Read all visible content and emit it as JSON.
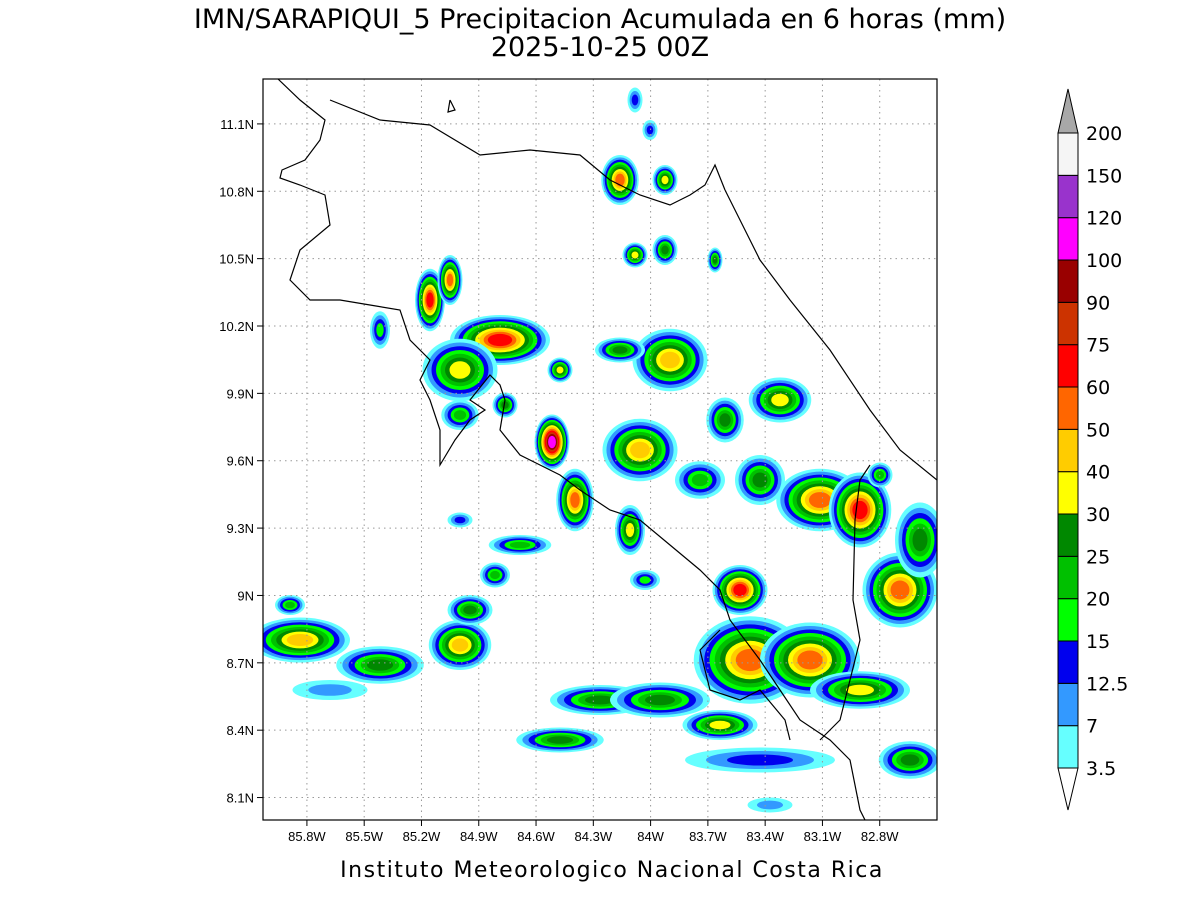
{
  "title": "IMN/SARAPIQUI_5 Precipitacion Acumulada en 6 horas (mm)",
  "subtitle": "2025-10-25 00Z",
  "footer": "Instituto Meteorologico Nacional Costa Rica",
  "map": {
    "xlim": [
      -86.03,
      -82.5
    ],
    "ylim": [
      8.0,
      11.3
    ],
    "grid": true,
    "xticks": [
      {
        "value": -85.8,
        "label": "85.8W"
      },
      {
        "value": -85.5,
        "label": "85.5W"
      },
      {
        "value": -85.2,
        "label": "85.2W"
      },
      {
        "value": -84.9,
        "label": "84.9W"
      },
      {
        "value": -84.6,
        "label": "84.6W"
      },
      {
        "value": -84.3,
        "label": "84.3W"
      },
      {
        "value": -84.0,
        "label": "84W"
      },
      {
        "value": -83.7,
        "label": "83.7W"
      },
      {
        "value": -83.4,
        "label": "83.4W"
      },
      {
        "value": -83.1,
        "label": "83.1W"
      },
      {
        "value": -82.8,
        "label": "82.8W"
      }
    ],
    "yticks": [
      {
        "value": 8.1,
        "label": "8.1N"
      },
      {
        "value": 8.4,
        "label": "8.4N"
      },
      {
        "value": 8.7,
        "label": "8.7N"
      },
      {
        "value": 9.0,
        "label": "9N"
      },
      {
        "value": 9.3,
        "label": "9.3N"
      },
      {
        "value": 9.6,
        "label": "9.6N"
      },
      {
        "value": 9.9,
        "label": "9.9N"
      },
      {
        "value": 10.2,
        "label": "10.2N"
      },
      {
        "value": 10.5,
        "label": "10.5N"
      },
      {
        "value": 10.8,
        "label": "10.8N"
      },
      {
        "value": 11.1,
        "label": "11.1N"
      }
    ]
  },
  "colorbar": {
    "levels": [
      3.5,
      7,
      12.5,
      15,
      20,
      25,
      30,
      40,
      50,
      60,
      75,
      90,
      100,
      120,
      150,
      200
    ],
    "colors": [
      "#66ffff",
      "#3399ff",
      "#0000ee",
      "#00ff00",
      "#00c000",
      "#008800",
      "#ffff00",
      "#ffcc00",
      "#ff6600",
      "#ff0000",
      "#cc3300",
      "#990000",
      "#ff00ff",
      "#9933cc",
      "#f5f5f5"
    ],
    "over_color": "#a8a8a8",
    "under_color": "#ffffff"
  }
}
